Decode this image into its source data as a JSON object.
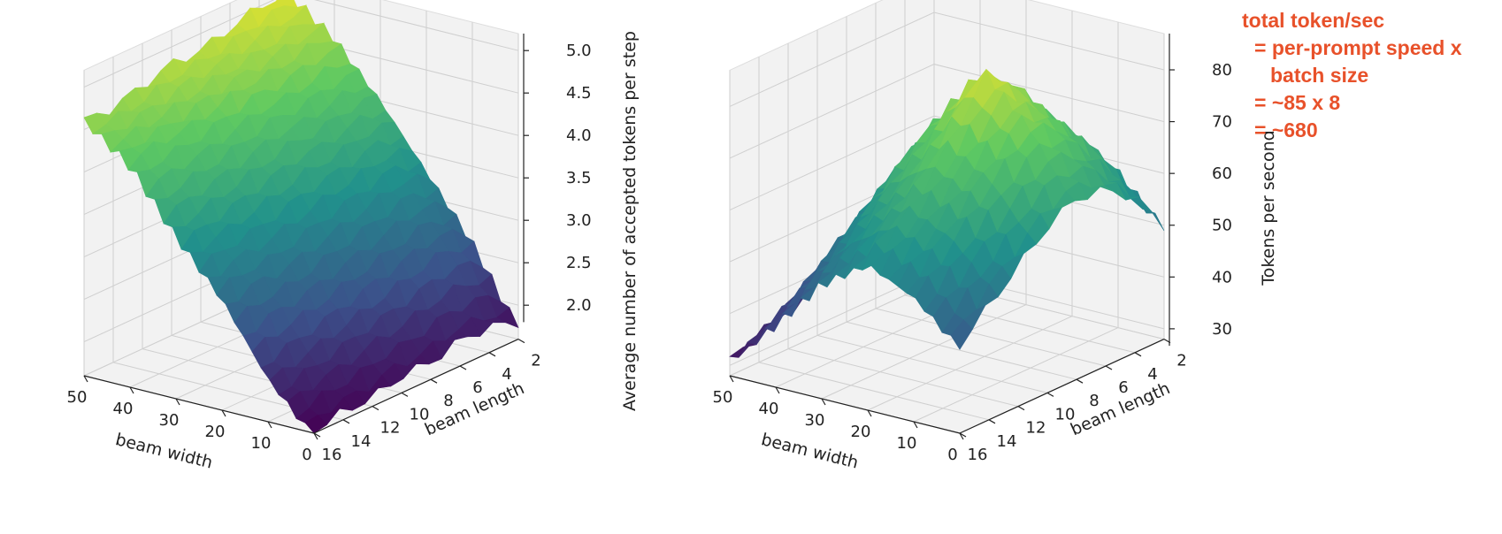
{
  "annotation": {
    "lines": [
      "total token/sec",
      "= per-prompt speed x",
      "batch size",
      "= ~85 x 8",
      "= ~680"
    ],
    "color": "#e8512a"
  },
  "chart_data": [
    {
      "type": "surface3d",
      "title": "",
      "xlabel": "beam width",
      "ylabel": "beam length",
      "zlabel": "Average number of accepted tokens per step",
      "x_ticks": [
        50,
        40,
        30,
        20,
        10,
        0
      ],
      "y_ticks": [
        16,
        14,
        12,
        10,
        8,
        6,
        4,
        2
      ],
      "z_ticks": [
        2.0,
        2.5,
        3.0,
        3.5,
        4.0,
        4.5,
        5.0
      ],
      "xlim": [
        0,
        50
      ],
      "ylim": [
        2,
        16
      ],
      "zlim": [
        1.6,
        5.2
      ],
      "colormap": "viridis",
      "surface_grid": {
        "beam_length": [
          2,
          4,
          6,
          8,
          10,
          12,
          14,
          16
        ],
        "beam_width": [
          1,
          10,
          20,
          30,
          40,
          50
        ],
        "z": [
          [
            1.8,
            2.6,
            3.3,
            4.0,
            4.6,
            5.0
          ],
          [
            1.9,
            2.7,
            3.4,
            4.0,
            4.6,
            5.0
          ],
          [
            1.9,
            2.6,
            3.3,
            3.9,
            4.5,
            4.9
          ],
          [
            1.8,
            2.5,
            3.2,
            3.9,
            4.5,
            4.8
          ],
          [
            1.8,
            2.4,
            3.1,
            3.8,
            4.4,
            4.8
          ],
          [
            1.7,
            2.3,
            3.0,
            3.7,
            4.3,
            4.7
          ],
          [
            1.7,
            2.2,
            3.0,
            3.6,
            4.3,
            4.6
          ],
          [
            1.6,
            2.1,
            2.9,
            3.5,
            4.2,
            4.6
          ]
        ]
      }
    },
    {
      "type": "surface3d",
      "title": "",
      "xlabel": "beam width",
      "ylabel": "beam length",
      "zlabel": "Tokens per second",
      "x_ticks": [
        50,
        40,
        30,
        20,
        10,
        0
      ],
      "y_ticks": [
        16,
        14,
        12,
        10,
        8,
        6,
        4,
        2
      ],
      "z_ticks": [
        30,
        40,
        50,
        60,
        70,
        80
      ],
      "xlim": [
        0,
        50
      ],
      "ylim": [
        2,
        16
      ],
      "zlim": [
        28,
        87
      ],
      "colormap": "viridis",
      "surface_grid": {
        "beam_length": [
          2,
          4,
          6,
          8,
          10,
          12,
          14,
          16
        ],
        "beam_width": [
          1,
          10,
          20,
          30,
          40,
          50
        ],
        "z": [
          [
            50,
            58,
            62,
            60,
            56,
            48
          ],
          [
            58,
            66,
            70,
            66,
            58,
            46
          ],
          [
            62,
            72,
            78,
            70,
            60,
            44
          ],
          [
            63,
            75,
            84,
            72,
            58,
            42
          ],
          [
            60,
            70,
            76,
            68,
            54,
            38
          ],
          [
            55,
            64,
            68,
            62,
            50,
            35
          ],
          [
            50,
            58,
            62,
            56,
            45,
            33
          ],
          [
            45,
            52,
            56,
            50,
            40,
            31
          ]
        ]
      }
    }
  ]
}
